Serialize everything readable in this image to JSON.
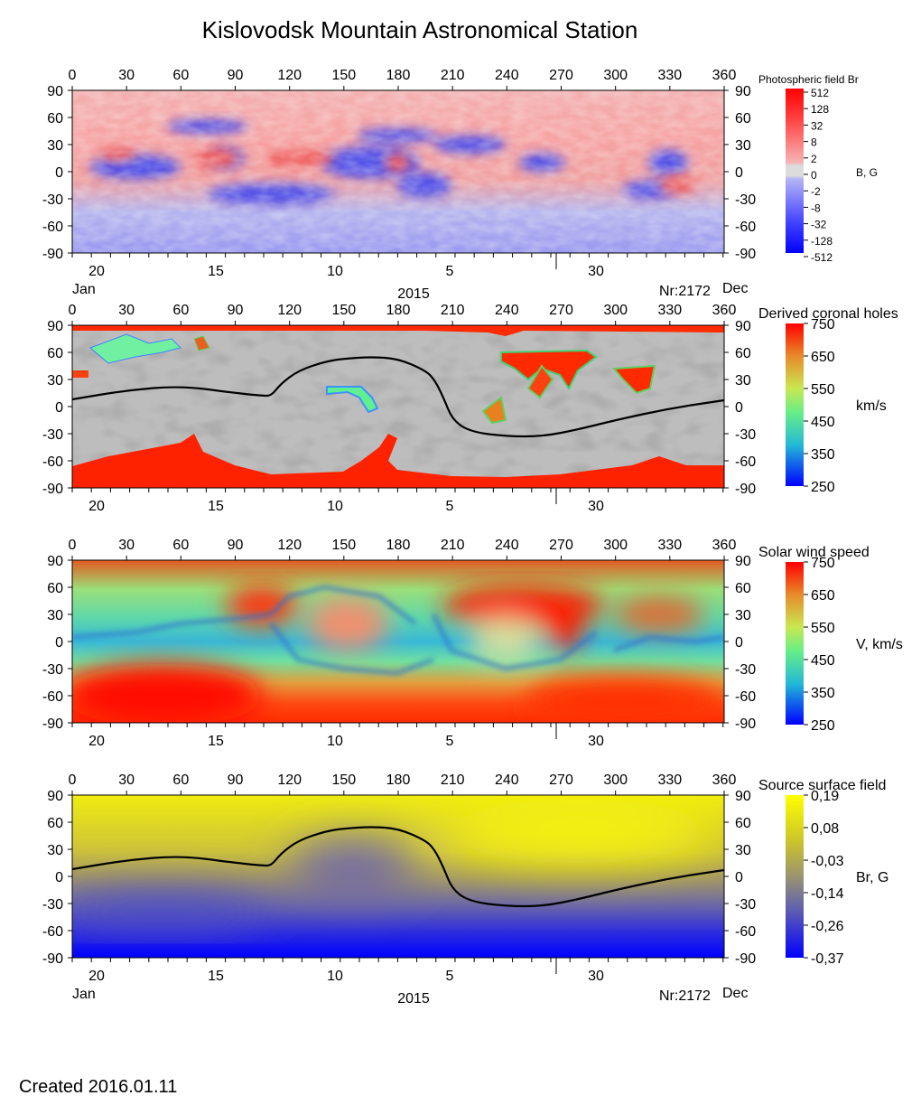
{
  "title": "Kislovodsk Mountain Astronomical Station",
  "created_label": "Created  2016.01.11",
  "chart_data": [
    {
      "type": "heatmap",
      "colorbar_title": "Photospheric field Br",
      "colorbar_unit": "B, G",
      "colorbar_ticks": [
        "512",
        "128",
        "32",
        "8",
        "2",
        "0",
        "-2",
        "-8",
        "-32",
        "-128",
        "-512"
      ],
      "colors": {
        "positive": "#ff0000",
        "negative": "#0000ff",
        "zero": "#e0e0e0"
      },
      "x_top_ticks": [
        0,
        30,
        60,
        90,
        120,
        150,
        180,
        210,
        240,
        270,
        300,
        330,
        360
      ],
      "y_ticks": [
        90,
        60,
        30,
        0,
        -30,
        -60,
        -90
      ],
      "x_bottom_ticks": [
        "20",
        "15",
        "10",
        "5",
        "30"
      ],
      "bottom_left_label": "Jan",
      "bottom_center_label": "2015",
      "bottom_right_label": "Nr:2172",
      "bottom_far_right_label": "Dec",
      "grid": false
    },
    {
      "type": "heatmap",
      "colorbar_title": "Derived coronal holes",
      "colorbar_unit": "km/s",
      "colorbar_ticks": [
        "750",
        "650",
        "550",
        "450",
        "350",
        "250"
      ],
      "neutral_line": [
        [
          0,
          8
        ],
        [
          30,
          18
        ],
        [
          60,
          23
        ],
        [
          90,
          15
        ],
        [
          105,
          12
        ],
        [
          110,
          12
        ],
        [
          115,
          25
        ],
        [
          125,
          40
        ],
        [
          140,
          50
        ],
        [
          150,
          53
        ],
        [
          165,
          55
        ],
        [
          180,
          53
        ],
        [
          195,
          40
        ],
        [
          200,
          30
        ],
        [
          205,
          10
        ],
        [
          210,
          -15
        ],
        [
          220,
          -28
        ],
        [
          240,
          -33
        ],
        [
          260,
          -33
        ],
        [
          280,
          -25
        ],
        [
          300,
          -15
        ],
        [
          330,
          -2
        ],
        [
          360,
          7
        ]
      ],
      "x_top_ticks": [
        0,
        30,
        60,
        90,
        120,
        150,
        180,
        210,
        240,
        270,
        300,
        330,
        360
      ],
      "y_ticks": [
        90,
        60,
        30,
        0,
        -30,
        -60,
        -90
      ],
      "x_bottom_ticks": [
        "20",
        "15",
        "10",
        "5",
        "30"
      ],
      "grid": false
    },
    {
      "type": "heatmap",
      "colorbar_title": "Solar wind speed",
      "colorbar_unit": "V, km/s",
      "colorbar_ticks": [
        "750",
        "650",
        "550",
        "450",
        "350",
        "250"
      ],
      "x_top_ticks": [
        0,
        30,
        60,
        90,
        120,
        150,
        180,
        210,
        240,
        270,
        300,
        330,
        360
      ],
      "y_ticks": [
        90,
        60,
        30,
        0,
        -30,
        -60,
        -90
      ],
      "x_bottom_ticks": [
        "20",
        "15",
        "10",
        "5",
        "30"
      ],
      "grid": false
    },
    {
      "type": "heatmap",
      "colorbar_title": "Source surface field",
      "colorbar_unit": "Br, G",
      "colorbar_ticks": [
        "0,19",
        "0,08",
        "-0,03",
        "-0,14",
        "-0,26",
        "-0,37"
      ],
      "neutral_line": [
        [
          0,
          8
        ],
        [
          30,
          18
        ],
        [
          60,
          23
        ],
        [
          90,
          15
        ],
        [
          105,
          12
        ],
        [
          110,
          12
        ],
        [
          115,
          25
        ],
        [
          125,
          40
        ],
        [
          140,
          50
        ],
        [
          150,
          53
        ],
        [
          165,
          55
        ],
        [
          180,
          53
        ],
        [
          195,
          40
        ],
        [
          200,
          30
        ],
        [
          205,
          10
        ],
        [
          210,
          -15
        ],
        [
          220,
          -28
        ],
        [
          240,
          -33
        ],
        [
          260,
          -33
        ],
        [
          280,
          -25
        ],
        [
          300,
          -15
        ],
        [
          330,
          -2
        ],
        [
          360,
          7
        ]
      ],
      "x_top_ticks": [
        0,
        30,
        60,
        90,
        120,
        150,
        180,
        210,
        240,
        270,
        300,
        330,
        360
      ],
      "y_ticks": [
        90,
        60,
        30,
        0,
        -30,
        -60,
        -90
      ],
      "x_bottom_ticks": [
        "20",
        "15",
        "10",
        "5",
        "30"
      ],
      "bottom_left_label": "Jan",
      "bottom_center_label": "2015",
      "bottom_right_label": "Nr:2172",
      "bottom_far_right_label": "Dec",
      "grid": false
    }
  ]
}
